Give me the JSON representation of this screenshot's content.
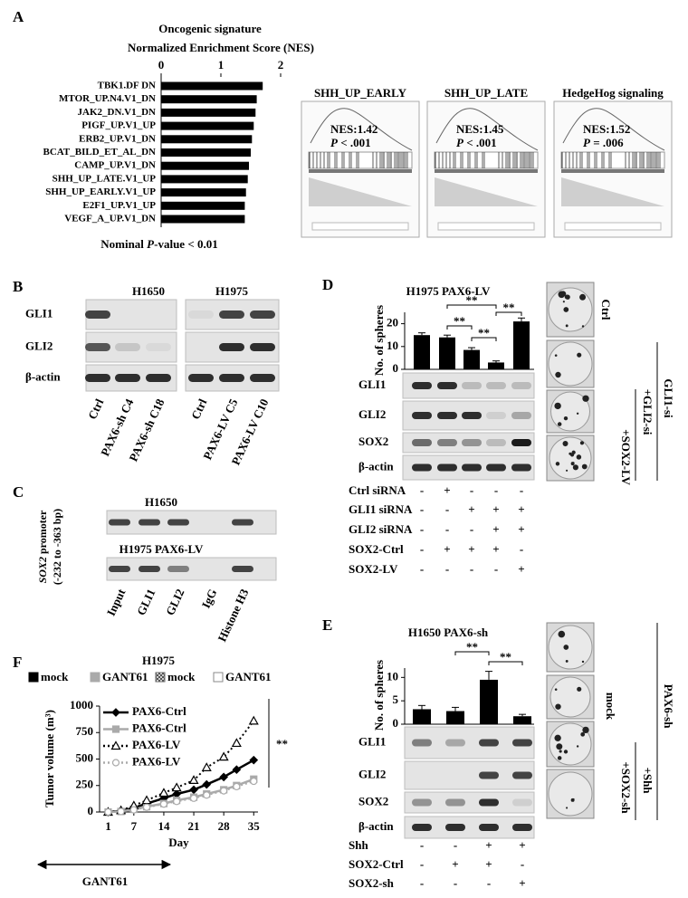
{
  "panel_labels": {
    "a": "A",
    "b": "B",
    "c": "C",
    "d": "D",
    "e": "E",
    "f": "F"
  },
  "chart_data": [
    {
      "type": "barh",
      "title": "Oncogenic signature",
      "subtitle": "Normalized Enrichment Score (NES)",
      "categories": [
        "TBK1.DF DN",
        "MTOR_UP.N4.V1_DN",
        "JAK2_DN.V1_DN",
        "PIGF_UP.V1_UP",
        "ERB2_UP.V1_DN",
        "BCAT_BILD_ET_AL_DN",
        "CAMP_UP.V1_DN",
        "SHH_UP_LATE.V1_UP",
        "SHH_UP_EARLY.V1_UP",
        "E2F1_UP.V1_UP",
        "VEGF_A_UP.V1_DN"
      ],
      "values": [
        1.7,
        1.6,
        1.58,
        1.55,
        1.52,
        1.5,
        1.47,
        1.45,
        1.42,
        1.4,
        1.4
      ],
      "color": "#000000",
      "xlim": [
        0,
        2
      ],
      "xticks": [
        0,
        1,
        2
      ],
      "note": [
        "Nominal ",
        "P",
        "-value < 0.01"
      ]
    },
    {
      "type": "bar",
      "title": "H1975 PAX6-LV",
      "ylabel": "No. of spheres",
      "values": [
        15,
        14,
        8.5,
        3,
        21
      ],
      "errors": [
        1,
        1,
        1,
        0.7,
        1.5
      ],
      "color": "#000000",
      "ylim": [
        0,
        25
      ],
      "yticks": [
        0,
        10,
        20
      ],
      "significance": [
        "**",
        "**",
        "**",
        "**"
      ]
    },
    {
      "type": "bar",
      "title": "H1650 PAX6-sh",
      "ylabel": "No. of spheres",
      "values": [
        3.2,
        2.8,
        9.5,
        1.7
      ],
      "errors": [
        0.8,
        0.8,
        1.8,
        0.4
      ],
      "color": "#000000",
      "ylim": [
        0,
        12
      ],
      "yticks": [
        0,
        5,
        10
      ],
      "significance": [
        "**",
        "**"
      ]
    },
    {
      "type": "line",
      "title": "H1975",
      "ylabel": "Tumor volume  (m³)",
      "xlabel": "Day",
      "groups": [
        {
          "name": "mock",
          "color": "#000000"
        },
        {
          "name": "GANT61",
          "color": "#aaaaaa"
        },
        {
          "name": "mock",
          "color": "#666666"
        },
        {
          "name": "GANT61",
          "color": "#ffffff"
        }
      ],
      "x": [
        1,
        4,
        7,
        10,
        14,
        17,
        21,
        24,
        28,
        31,
        35
      ],
      "xlim": [
        -1,
        36
      ],
      "xticks": [
        1,
        7,
        14,
        21,
        28,
        35
      ],
      "ylim": [
        0,
        1000
      ],
      "yticks": [
        0,
        250,
        500,
        750,
        1000
      ],
      "series": [
        {
          "name": "PAX6-Ctrl",
          "color": "#000000",
          "line_style": "solid",
          "marker": "diamond",
          "values": [
            0,
            10,
            40,
            80,
            130,
            170,
            210,
            260,
            330,
            400,
            490
          ]
        },
        {
          "name": "PAX6-Ctrl",
          "color": "#aaaaaa",
          "line_style": "solid",
          "marker": "square",
          "values": [
            0,
            5,
            25,
            50,
            80,
            110,
            140,
            170,
            210,
            250,
            310
          ]
        },
        {
          "name": "PAX6-LV",
          "color": "#000000",
          "line_style": "dotted",
          "marker": "triangle",
          "values": [
            0,
            15,
            60,
            110,
            180,
            230,
            300,
            420,
            520,
            650,
            860
          ]
        },
        {
          "name": "PAX6-LV",
          "color": "#aaaaaa",
          "line_style": "dotted",
          "marker": "circle",
          "values": [
            0,
            5,
            20,
            45,
            75,
            100,
            130,
            160,
            200,
            240,
            290
          ]
        }
      ],
      "significance": "**",
      "treatment": "GANT61"
    }
  ],
  "gsea": [
    {
      "title": "SHH_UP_EARLY",
      "nes": "NES:1.42",
      "p": "P",
      "p_value": " < .001"
    },
    {
      "title": "SHH_UP_LATE",
      "nes": "NES:1.45",
      "p": "P",
      "p_value": " < .001"
    },
    {
      "title": "HedgeHog signaling",
      "nes": "NES:1.52",
      "p": "P",
      "p_value": " = .006"
    }
  ],
  "blot_b": {
    "cells": [
      "H1650",
      "H1975"
    ],
    "rows": [
      "GLI1",
      "GLI2",
      "β-actin"
    ],
    "lanes": [
      "Ctrl",
      "PAX6-sh C4",
      "PAX6-sh C18",
      "Ctrl",
      "PAX6-LV C5",
      "PAX6-LV C10"
    ]
  },
  "chip_c": {
    "ylabel": [
      "SOX2",
      " promoter",
      "(-232 to -363 bp)"
    ],
    "cells": [
      "H1650",
      "H1975 PAX6-LV"
    ],
    "lanes": [
      "Input",
      "GLI1",
      "GLI2",
      "IgG",
      "Histone H3"
    ]
  },
  "panel_d": {
    "rows": [
      "GLI1",
      "GLI2",
      "SOX2",
      "β-actin"
    ],
    "treatments": [
      {
        "name": "Ctrl siRNA",
        "signs": [
          "-",
          "+",
          "-",
          "-",
          "-"
        ]
      },
      {
        "name": "GLI1 siRNA",
        "signs": [
          "-",
          "-",
          "+",
          "+",
          "+"
        ]
      },
      {
        "name": "GLI2 siRNA",
        "signs": [
          "-",
          "-",
          "-",
          "+",
          "+"
        ]
      },
      {
        "name": "SOX2-Ctrl",
        "signs": [
          "-",
          "+",
          "+",
          "+",
          "-"
        ]
      },
      {
        "name": "SOX2-LV",
        "signs": [
          "-",
          "-",
          "-",
          "-",
          "+"
        ]
      }
    ],
    "side_labels": [
      "Ctrl",
      "GLI1-si",
      "+GLI2-si",
      "+SOX2-LV"
    ]
  },
  "panel_e": {
    "rows": [
      "GLI1",
      "GLI2",
      "SOX2",
      "β-actin"
    ],
    "treatments": [
      {
        "name": "Shh",
        "signs": [
          "-",
          "-",
          "+",
          "+"
        ]
      },
      {
        "name": "SOX2-Ctrl",
        "signs": [
          "-",
          "+",
          "+",
          "-"
        ]
      },
      {
        "name": "SOX2-sh",
        "signs": [
          "-",
          "-",
          "-",
          "+"
        ]
      }
    ],
    "side_labels": [
      "mock",
      "PAX6-sh",
      "+Shh",
      "+SOX2-sh"
    ]
  }
}
